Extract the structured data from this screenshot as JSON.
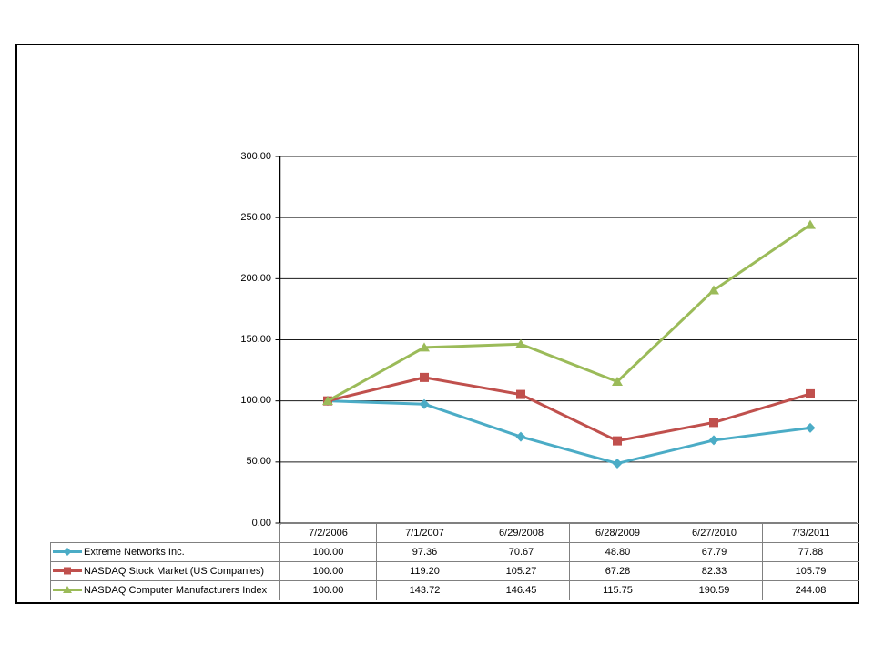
{
  "page": {
    "background_color": "#FFFFFF",
    "frame_border_color": "#000000",
    "axis_color": "#000000",
    "gridline_color": "#1a1a1a",
    "table_border_color": "#808080",
    "text_color": "#000000"
  },
  "chart_data": {
    "type": "line",
    "title": "",
    "xlabel": "",
    "ylabel": "",
    "x": [
      "7/2/2006",
      "7/1/2007",
      "6/29/2008",
      "6/28/2009",
      "6/27/2010",
      "7/3/2011"
    ],
    "series": [
      {
        "name": "Extreme Networks Inc.",
        "marker": "diamond",
        "color": "#4BACC6",
        "values": [
          100.0,
          97.36,
          70.67,
          48.8,
          67.79,
          77.88
        ]
      },
      {
        "name": "NASDAQ Stock Market (US Companies)",
        "marker": "square",
        "color": "#C0504D",
        "values": [
          100.0,
          119.2,
          105.27,
          67.28,
          82.33,
          105.79
        ]
      },
      {
        "name": "NASDAQ Computer Manufacturers Index",
        "marker": "triangle",
        "color": "#9BBB59",
        "values": [
          100.0,
          143.72,
          146.45,
          115.75,
          190.59,
          244.08
        ]
      }
    ],
    "ylim": [
      0,
      300
    ],
    "y_ticks": [
      0,
      50,
      100,
      150,
      200,
      250,
      300
    ],
    "y_tick_labels": [
      "0.00",
      "50.00",
      "100.00",
      "150.00",
      "200.00",
      "250.00",
      "300.00"
    ],
    "grid": true,
    "legend_position": "table-left",
    "value_format": "0.00"
  }
}
